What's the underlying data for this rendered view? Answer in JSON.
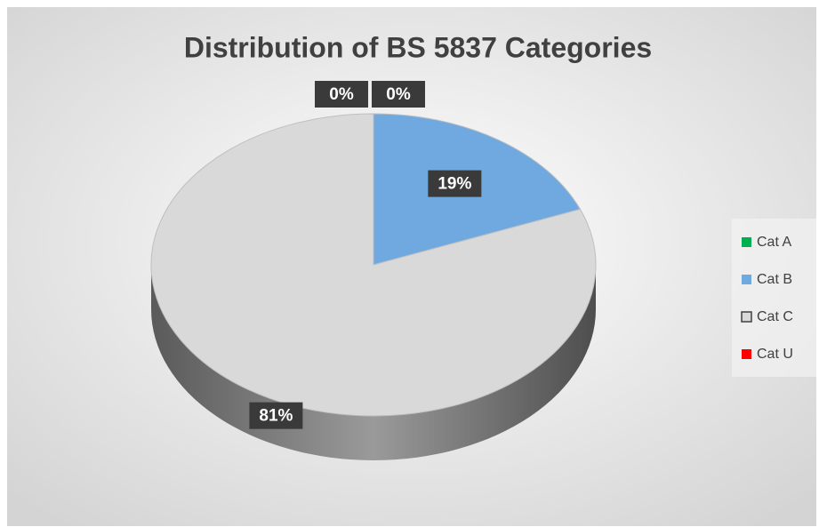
{
  "chart_data": {
    "type": "pie",
    "title": "Distribution of BS 5837 Categories",
    "categories": [
      "Cat A",
      "Cat B",
      "Cat C",
      "Cat U"
    ],
    "values": [
      0,
      19,
      81,
      0
    ],
    "value_labels": [
      "0%",
      "19%",
      "81%",
      "0%"
    ],
    "colors": [
      "#00b050",
      "#70a9e0",
      "#d9d9d9",
      "#ff0000"
    ],
    "legend": "right"
  }
}
